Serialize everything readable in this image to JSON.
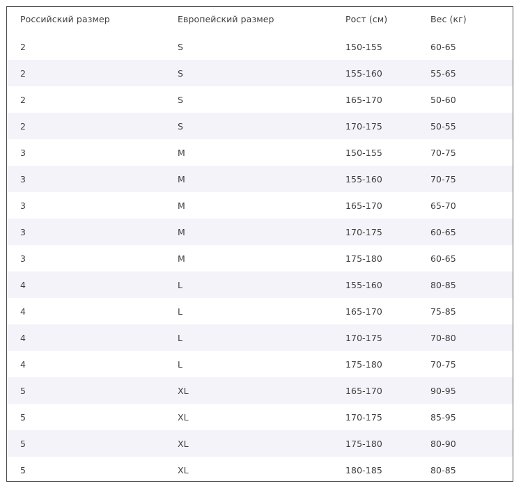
{
  "size_table": {
    "headers": [
      "Российский размер",
      "Европейский размер",
      "Рост (см)",
      "Вес (кг)"
    ],
    "rows": [
      [
        "2",
        "S",
        "150-155",
        "60-65"
      ],
      [
        "2",
        "S",
        "155-160",
        "55-65"
      ],
      [
        "2",
        "S",
        "165-170",
        "50-60"
      ],
      [
        "2",
        "S",
        "170-175",
        "50-55"
      ],
      [
        "3",
        "M",
        "150-155",
        "70-75"
      ],
      [
        "3",
        "M",
        "155-160",
        "70-75"
      ],
      [
        "3",
        "M",
        "165-170",
        "65-70"
      ],
      [
        "3",
        "M",
        "170-175",
        "60-65"
      ],
      [
        "3",
        "M",
        "175-180",
        "60-65"
      ],
      [
        "4",
        "L",
        "155-160",
        "80-85"
      ],
      [
        "4",
        "L",
        "165-170",
        "75-85"
      ],
      [
        "4",
        "L",
        "170-175",
        "70-80"
      ],
      [
        "4",
        "L",
        "175-180",
        "70-75"
      ],
      [
        "5",
        "XL",
        "165-170",
        "90-95"
      ],
      [
        "5",
        "XL",
        "170-175",
        "85-95"
      ],
      [
        "5",
        "XL",
        "175-180",
        "80-90"
      ],
      [
        "5",
        "XL",
        "180-185",
        "80-85"
      ]
    ],
    "stripe_color": "#f4f3f9",
    "border_color": "#4a4a4a",
    "text_color": "#3e3e3e"
  }
}
